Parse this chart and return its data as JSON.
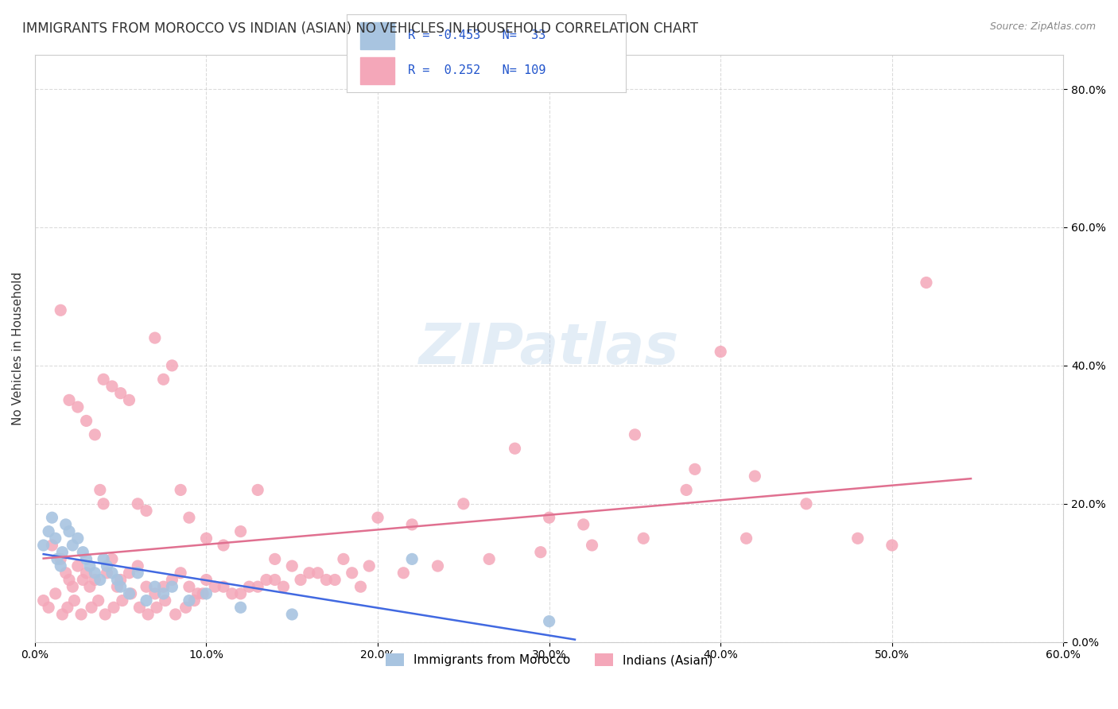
{
  "title": "IMMIGRANTS FROM MOROCCO VS INDIAN (ASIAN) NO VEHICLES IN HOUSEHOLD CORRELATION CHART",
  "source": "Source: ZipAtlas.com",
  "xlabel": "",
  "ylabel": "No Vehicles in Household",
  "xlim": [
    0.0,
    0.6
  ],
  "ylim": [
    0.0,
    0.85
  ],
  "xticks": [
    0.0,
    0.1,
    0.2,
    0.3,
    0.4,
    0.5,
    0.6
  ],
  "yticks": [
    0.0,
    0.2,
    0.4,
    0.6,
    0.8
  ],
  "xtick_labels": [
    "0.0%",
    "",
    "",
    "",
    "",
    "",
    "60.0%"
  ],
  "ytick_labels": [
    "",
    "20.0%",
    "40.0%",
    "60.0%",
    "80.0%"
  ],
  "legend_label1": "Immigrants from Morocco",
  "legend_label2": "Indians (Asian)",
  "r1": -0.453,
  "n1": 33,
  "r2": 0.252,
  "n2": 109,
  "color_morocco": "#a8c4e0",
  "color_indian": "#f4a7b9",
  "line_color_morocco": "#4169e1",
  "line_color_indian": "#e07090",
  "watermark": "ZIPatlas",
  "background_color": "#ffffff",
  "grid_color": "#cccccc",
  "morocco_x": [
    0.005,
    0.008,
    0.01,
    0.012,
    0.013,
    0.015,
    0.016,
    0.018,
    0.02,
    0.022,
    0.025,
    0.028,
    0.03,
    0.032,
    0.035,
    0.038,
    0.04,
    0.042,
    0.045,
    0.048,
    0.05,
    0.055,
    0.06,
    0.065,
    0.07,
    0.075,
    0.08,
    0.09,
    0.1,
    0.12,
    0.15,
    0.22,
    0.3
  ],
  "morocco_y": [
    0.14,
    0.16,
    0.18,
    0.15,
    0.12,
    0.11,
    0.13,
    0.17,
    0.16,
    0.14,
    0.15,
    0.13,
    0.12,
    0.11,
    0.1,
    0.09,
    0.12,
    0.11,
    0.1,
    0.09,
    0.08,
    0.07,
    0.1,
    0.06,
    0.08,
    0.07,
    0.08,
    0.06,
    0.07,
    0.05,
    0.04,
    0.12,
    0.03
  ],
  "indian_x": [
    0.01,
    0.015,
    0.018,
    0.02,
    0.022,
    0.025,
    0.028,
    0.03,
    0.032,
    0.035,
    0.038,
    0.04,
    0.042,
    0.045,
    0.048,
    0.05,
    0.055,
    0.06,
    0.065,
    0.07,
    0.075,
    0.08,
    0.085,
    0.09,
    0.095,
    0.1,
    0.11,
    0.12,
    0.13,
    0.14,
    0.015,
    0.02,
    0.025,
    0.03,
    0.035,
    0.04,
    0.045,
    0.05,
    0.055,
    0.06,
    0.065,
    0.07,
    0.075,
    0.08,
    0.085,
    0.09,
    0.1,
    0.11,
    0.12,
    0.13,
    0.14,
    0.15,
    0.16,
    0.17,
    0.18,
    0.19,
    0.2,
    0.22,
    0.25,
    0.28,
    0.3,
    0.32,
    0.35,
    0.38,
    0.4,
    0.42,
    0.45,
    0.48,
    0.5,
    0.52,
    0.005,
    0.008,
    0.012,
    0.016,
    0.019,
    0.023,
    0.027,
    0.033,
    0.037,
    0.041,
    0.046,
    0.051,
    0.056,
    0.061,
    0.066,
    0.071,
    0.076,
    0.082,
    0.088,
    0.093,
    0.098,
    0.105,
    0.115,
    0.125,
    0.135,
    0.145,
    0.155,
    0.165,
    0.175,
    0.185,
    0.195,
    0.215,
    0.235,
    0.265,
    0.295,
    0.325,
    0.355,
    0.385,
    0.415
  ],
  "indian_y": [
    0.14,
    0.12,
    0.1,
    0.09,
    0.08,
    0.11,
    0.09,
    0.1,
    0.08,
    0.09,
    0.22,
    0.2,
    0.1,
    0.12,
    0.08,
    0.09,
    0.1,
    0.11,
    0.08,
    0.07,
    0.08,
    0.09,
    0.1,
    0.08,
    0.07,
    0.09,
    0.08,
    0.07,
    0.08,
    0.09,
    0.48,
    0.35,
    0.34,
    0.32,
    0.3,
    0.38,
    0.37,
    0.36,
    0.35,
    0.2,
    0.19,
    0.44,
    0.38,
    0.4,
    0.22,
    0.18,
    0.15,
    0.14,
    0.16,
    0.22,
    0.12,
    0.11,
    0.1,
    0.09,
    0.12,
    0.08,
    0.18,
    0.17,
    0.2,
    0.28,
    0.18,
    0.17,
    0.3,
    0.22,
    0.42,
    0.24,
    0.2,
    0.15,
    0.14,
    0.52,
    0.06,
    0.05,
    0.07,
    0.04,
    0.05,
    0.06,
    0.04,
    0.05,
    0.06,
    0.04,
    0.05,
    0.06,
    0.07,
    0.05,
    0.04,
    0.05,
    0.06,
    0.04,
    0.05,
    0.06,
    0.07,
    0.08,
    0.07,
    0.08,
    0.09,
    0.08,
    0.09,
    0.1,
    0.09,
    0.1,
    0.11,
    0.1,
    0.11,
    0.12,
    0.13,
    0.14,
    0.15,
    0.25,
    0.15
  ]
}
